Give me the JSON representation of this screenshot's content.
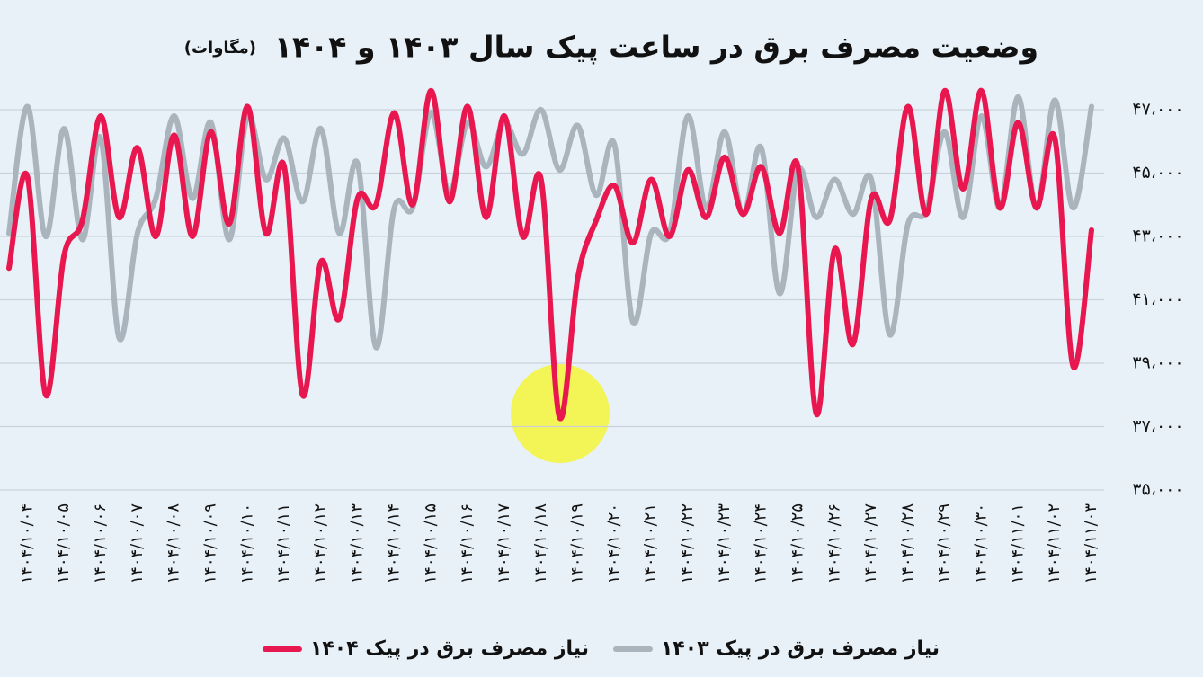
{
  "chart_data": {
    "type": "line",
    "title": "وضعیت مصرف برق در ساعت پیک سال ۱۴۰۳ و ۱۴۰۴",
    "subtitle": "(مگاوات)",
    "categories": [
      null,
      "۱۴۰۴/۱۰/۰۴",
      null,
      "۱۴۰۴/۱۰/۰۵",
      null,
      "۱۴۰۴/۱۰/۰۶",
      null,
      "۱۴۰۴/۱۰/۰۷",
      null,
      "۱۴۰۴/۱۰/۰۸",
      null,
      "۱۴۰۴/۱۰/۰۹",
      null,
      "۱۴۰۴/۱۰/۱۰",
      null,
      "۱۴۰۴/۱۰/۱۱",
      null,
      "۱۴۰۴/۱۰/۱۲",
      null,
      "۱۴۰۴/۱۰/۱۳",
      null,
      "۱۴۰۴/۱۰/۱۴",
      null,
      "۱۴۰۴/۱۰/۱۵",
      null,
      "۱۴۰۴/۱۰/۱۶",
      null,
      "۱۴۰۴/۱۰/۱۷",
      null,
      "۱۴۰۴/۱۰/۱۸",
      null,
      "۱۴۰۴/۱۰/۱۹",
      null,
      "۱۴۰۴/۱۰/۲۰",
      null,
      "۱۴۰۴/۱۰/۲۱",
      null,
      "۱۴۰۴/۱۰/۲۲",
      null,
      "۱۴۰۴/۱۰/۲۳",
      null,
      "۱۴۰۴/۱۰/۲۴",
      null,
      "۱۴۰۴/۱۰/۲۵",
      null,
      "۱۴۰۴/۱۰/۲۶",
      null,
      "۱۴۰۴/۱۰/۲۷",
      null,
      "۱۴۰۴/۱۰/۲۸",
      null,
      "۱۴۰۴/۱۰/۲۹",
      null,
      "۱۴۰۴/۱۰/۳۰",
      null,
      "۱۴۰۴/۱۱/۰۱",
      null,
      "۱۴۰۴/۱۱/۰۲",
      null,
      "۱۴۰۴/۱۱/۰۳"
    ],
    "series": [
      {
        "name": "نیاز مصرف برق در پیک ۱۴۰۴",
        "color": "#e8174f",
        "values": [
          42000,
          44900,
          38000,
          42400,
          43500,
          46800,
          43600,
          45800,
          43000,
          46200,
          43000,
          46300,
          43400,
          47100,
          43100,
          45200,
          38000,
          42200,
          40400,
          44200,
          44000,
          46900,
          44000,
          47600,
          44100,
          47100,
          43600,
          46800,
          43000,
          44800,
          37300,
          41700,
          43500,
          44600,
          42800,
          44800,
          43000,
          45100,
          43600,
          45500,
          43700,
          45200,
          43100,
          45200,
          37400,
          42600,
          39600,
          44200,
          43500,
          47100,
          43700,
          47600,
          44500,
          47600,
          43900,
          46600,
          43900,
          46100,
          38900,
          43200
        ]
      },
      {
        "name": "نیاز مصرف برق در پیک ۱۴۰۳",
        "color": "#a9b4bd",
        "values": [
          43100,
          47100,
          43000,
          46400,
          42900,
          46100,
          39800,
          43100,
          44200,
          46800,
          44200,
          46600,
          42900,
          46800,
          44800,
          46100,
          44100,
          46400,
          43100,
          45300,
          39500,
          43900,
          43900,
          46900,
          44400,
          46600,
          45200,
          46600,
          45600,
          47000,
          45100,
          46500,
          44300,
          45900,
          40300,
          43100,
          43100,
          46800,
          43900,
          46300,
          43700,
          45800,
          41200,
          45100,
          43600,
          44800,
          43700,
          44800,
          39900,
          43400,
          43800,
          46300,
          43600,
          46800,
          43900,
          47400,
          43900,
          47300,
          43900,
          47100
        ]
      }
    ],
    "ylim": [
      35000,
      48000
    ],
    "yticks": [
      {
        "value": 35000,
        "label": "۳۵،۰۰۰"
      },
      {
        "value": 37000,
        "label": "۳۷،۰۰۰"
      },
      {
        "value": 39000,
        "label": "۳۹،۰۰۰"
      },
      {
        "value": 41000,
        "label": "۴۱،۰۰۰"
      },
      {
        "value": 43000,
        "label": "۴۳،۰۰۰"
      },
      {
        "value": 45000,
        "label": "۴۵،۰۰۰"
      },
      {
        "value": 47000,
        "label": "۴۷،۰۰۰"
      }
    ],
    "grid": true
  }
}
